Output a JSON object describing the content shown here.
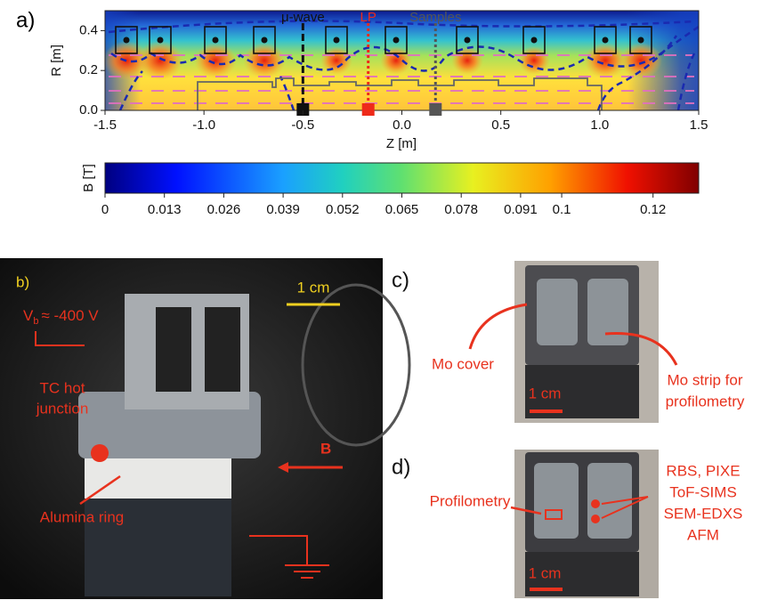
{
  "chart_data": {
    "type": "field-map",
    "label": "a)",
    "xlabel": "Z [m]",
    "ylabel": "R [m]",
    "xlim": [
      -1.5,
      1.5
    ],
    "ylim": [
      0,
      0.5
    ],
    "xticks": [
      -1.5,
      {
        "value": -1.0,
        "label": "-1.0"
      },
      -0.5,
      {
        "value": 0.0,
        "label": "0.0"
      },
      0.5,
      {
        "value": 1.0,
        "label": "1.0"
      },
      1.5
    ],
    "yticks": [
      {
        "value": 0.0,
        "label": "0.0"
      },
      0.2,
      0.4
    ],
    "annotations": [
      {
        "text": "μ-wave",
        "x": -0.5,
        "color": "#111111"
      },
      {
        "text": "LP",
        "x": -0.17,
        "color": "#ee2a1a"
      },
      {
        "text": "Samples",
        "x": 0.17,
        "color": "#555555"
      }
    ],
    "colorbar": {
      "label": "B [T]",
      "lim": [
        0,
        0.13
      ],
      "ticks": [
        0,
        0.013,
        0.026,
        0.039,
        0.052,
        0.065,
        0.078,
        0.091,
        0.1,
        0.12
      ]
    }
  },
  "photos": {
    "b": {
      "label": "b)",
      "scale": "1 cm",
      "voltage_symbol": "V",
      "voltage_subscript": "b",
      "voltage_value": "≈ -400 V",
      "tc_line1": "TC hot",
      "tc_line2": "junction",
      "field": "B",
      "ring": "Alumina ring"
    },
    "c": {
      "label": "c)",
      "cover": "Mo cover",
      "strip_line1": "Mo strip for",
      "strip_line2": "profilometry",
      "scale": "1 cm"
    },
    "d": {
      "label": "d)",
      "profilometry": "Profilometry",
      "methods": [
        "RBS, PIXE",
        "ToF-SIMS",
        "SEM-EDXS",
        "AFM"
      ],
      "scale": "1 cm"
    }
  }
}
